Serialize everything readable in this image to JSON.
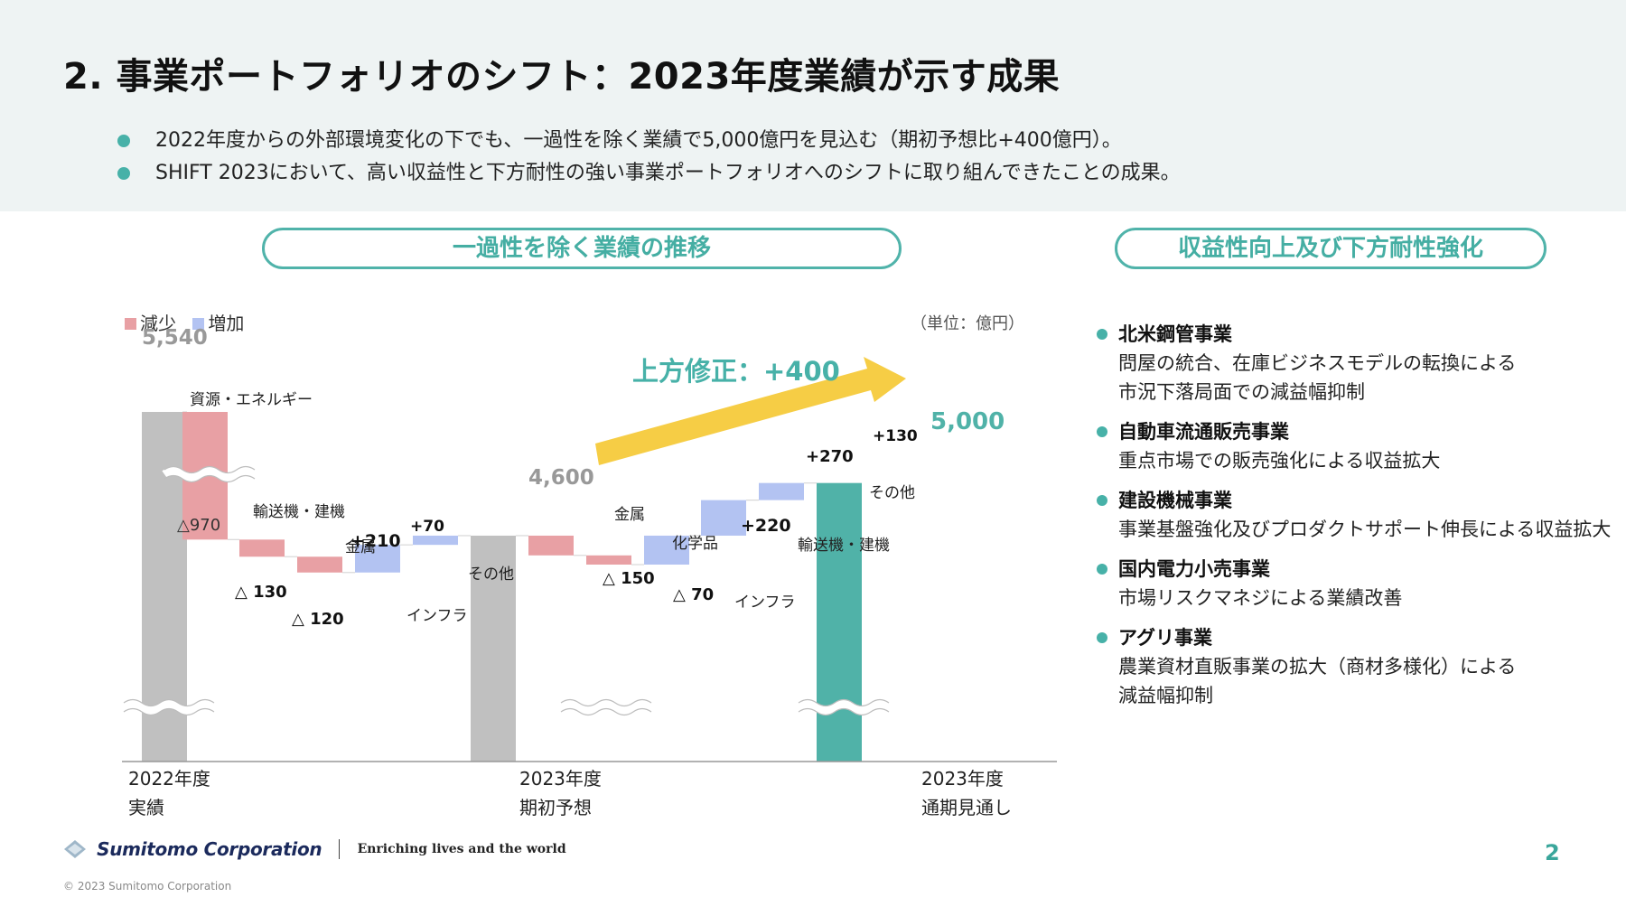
{
  "title": "2. 事業ポートフォリオのシフト：2023年度業績が示す成果",
  "bullets": [
    "2022年度からの外部環境変化の下でも、一過性を除く業績で5,000億円を見込む（期初予想比+400億円）。",
    "SHIFT 2023において、高い収益性と下方耐性の強い事業ポートフォリオへのシフトに取り組んできたことの成果。"
  ],
  "left_header": "一過性を除く業績の推移",
  "right_header": "収益性向上及び下方耐性強化",
  "legend": {
    "decrease": "減少",
    "increase": "増加"
  },
  "unit": "（単位：億円）",
  "colors": {
    "decrease": "#e8a0a4",
    "increase": "#b3c3f2",
    "base": "#c0c0c0",
    "final": "#50b2a8",
    "accent": "#47b1a8",
    "arrow": "#f6cd45"
  },
  "chart_data": {
    "type": "waterfall",
    "title": "一過性を除く業績の推移",
    "unit": "億円",
    "axis_break": true,
    "bars": [
      {
        "id": "b0",
        "kind": "total",
        "value": 5540,
        "value_label": "5,540",
        "axis_label": [
          "2022年度",
          "実績"
        ]
      },
      {
        "id": "b1",
        "kind": "decrease",
        "delta": -970,
        "value_label": "△970",
        "label": "資源・エネルギー"
      },
      {
        "id": "b2",
        "kind": "decrease",
        "delta": -130,
        "value_label": "△ 130",
        "label": "輸送機・建機"
      },
      {
        "id": "b3",
        "kind": "decrease",
        "delta": -120,
        "value_label": "△ 120",
        "label": "金属"
      },
      {
        "id": "b4",
        "kind": "increase",
        "delta": 210,
        "value_label": "+210",
        "label": "インフラ"
      },
      {
        "id": "b5",
        "kind": "increase",
        "delta": 70,
        "value_label": "+70",
        "label": "その他"
      },
      {
        "id": "b6",
        "kind": "total",
        "value": 4600,
        "value_label": "4,600",
        "axis_label": [
          "2023年度",
          "期初予想"
        ]
      },
      {
        "id": "b7",
        "kind": "decrease",
        "delta": -150,
        "value_label": "△ 150",
        "label": "金属"
      },
      {
        "id": "b8",
        "kind": "decrease",
        "delta": -70,
        "value_label": "△ 70",
        "label": "化学品"
      },
      {
        "id": "b9",
        "kind": "increase",
        "delta": 220,
        "value_label": "+220",
        "label": "インフラ"
      },
      {
        "id": "b10",
        "kind": "increase",
        "delta": 270,
        "value_label": "+270",
        "label": "輸送機・建機"
      },
      {
        "id": "b11",
        "kind": "increase",
        "delta": 130,
        "value_label": "+130",
        "label": "その他"
      },
      {
        "id": "b12",
        "kind": "final",
        "value": 5000,
        "value_label": "5,000",
        "axis_label": [
          "2023年度",
          "通期見通し"
        ]
      }
    ],
    "annotation": "上方修正：+400"
  },
  "right_items": [
    {
      "title": "北米鋼管事業",
      "desc": [
        "問屋の統合、在庫ビジネスモデルの転換による",
        "市況下落局面での減益幅抑制"
      ]
    },
    {
      "title": "自動車流通販売事業",
      "desc": [
        "重点市場での販売強化による収益拡大"
      ]
    },
    {
      "title": "建設機械事業",
      "desc": [
        "事業基盤強化及びプロダクトサポート伸長による収益拡大"
      ]
    },
    {
      "title": "国内電力小売事業",
      "desc": [
        "市場リスクマネジによる業績改善"
      ]
    },
    {
      "title": "アグリ事業",
      "desc": [
        "農業資材直販事業の拡大（商材多様化）による",
        "減益幅抑制"
      ]
    }
  ],
  "footer": {
    "company": "Sumitomo Corporation",
    "tagline": "Enriching lives and the world",
    "page": "2",
    "copyright": "© 2023 Sumitomo Corporation"
  }
}
